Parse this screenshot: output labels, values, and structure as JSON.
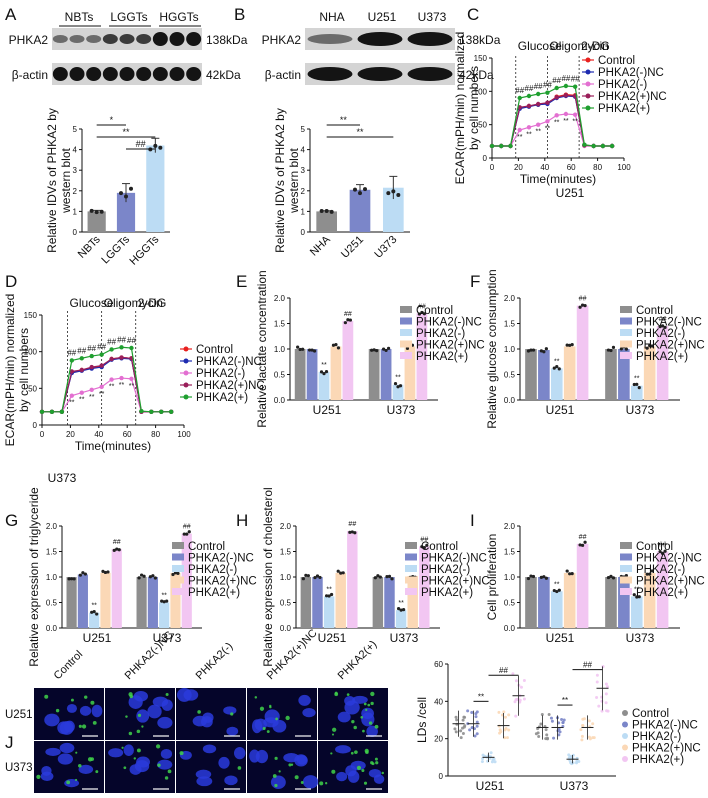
{
  "panel_letters": [
    "A",
    "B",
    "C",
    "D",
    "E",
    "F",
    "G",
    "H",
    "I",
    "J"
  ],
  "colors": {
    "control": "#8e8e8e",
    "neg_nc": "#7b86c9",
    "neg": "#bcdcf4",
    "pos_nc": "#fbd8b6",
    "pos": "#f2c6f2",
    "line_control": "#e8201e",
    "line_neg_nc": "#1d2bb0",
    "line_neg": "#e36fd1",
    "line_pos_nc": "#9a1f5a",
    "line_pos": "#1f9f2f",
    "blot_band": "#141414",
    "blot_bg": "#d4d4d4",
    "micro_bg": "#05052a",
    "nuclei": "#2a3bdc",
    "lipid": "#3fd24a"
  },
  "legend": [
    "Control",
    "PHKA2(-)NC",
    "PHKA2(-)",
    "PHKA2(+)NC",
    "PHKA2(+)"
  ],
  "blotA": {
    "groups": [
      "NBTs",
      "LGGTs",
      "HGGTs"
    ],
    "row1": "PHKA2",
    "row2": "β-actin",
    "kda1": "138kDa",
    "kda2": "42kDa"
  },
  "blotB": {
    "groups": [
      "NHA",
      "U251",
      "U373"
    ],
    "row1": "PHKA2",
    "row2": "β-actin",
    "kda1": "138kDa",
    "kda2": "42kDa"
  },
  "ecar_labels": {
    "glucose": "Glucose",
    "oligomycin": "Oligomycin",
    "dg": "2-DG",
    "ylabel_1": "ECAR(mPH/min) normalized",
    "ylabel_2": "by cell numbers",
    "xlabel": "Time(minutes)"
  },
  "captions": {
    "c": "U251",
    "d": "U373"
  },
  "sig": {
    "ss": "**",
    "hh": "##"
  },
  "microscopy": {
    "cols": [
      "Control",
      "PHKA2(-)NC",
      "PHKA2(-)",
      "PHKA2(+)NC",
      "PHKA2(+)"
    ],
    "rows": [
      "U251",
      "U373"
    ]
  },
  "chart_data": [
    {
      "panel": "A",
      "type": "bar",
      "ylabel": "Relative IDVs of PHKA2 by western blot",
      "categories": [
        "NBTs",
        "LGGTs",
        "HGGTs"
      ],
      "values": [
        1.0,
        1.9,
        4.2
      ],
      "errors": [
        0.05,
        0.45,
        0.35
      ],
      "ylim": [
        0,
        5
      ],
      "yticks": [
        0,
        1,
        2,
        3,
        4,
        5
      ],
      "sig": [
        {
          "from": 0,
          "to": 1,
          "text": "*"
        },
        {
          "from": 0,
          "to": 2,
          "text": "**"
        },
        {
          "from": 1,
          "to": 2,
          "text": "##"
        }
      ]
    },
    {
      "panel": "B",
      "type": "bar",
      "ylabel": "Relative IDVs of PHKA2 by western blot",
      "categories": [
        "NHA",
        "U251",
        "U373"
      ],
      "values": [
        1.0,
        2.05,
        2.15
      ],
      "errors": [
        0.03,
        0.25,
        0.55
      ],
      "ylim": [
        0,
        5
      ],
      "yticks": [
        0,
        1,
        2,
        3,
        4,
        5
      ],
      "sig": [
        {
          "from": 0,
          "to": 1,
          "text": "**"
        },
        {
          "from": 0,
          "to": 2,
          "text": "**"
        }
      ]
    },
    {
      "panel": "C",
      "type": "line",
      "ylabel": "ECAR(mPH/min) normalized by cell numbers",
      "xlabel": "Time(minutes)",
      "xlim": [
        0,
        100
      ],
      "xticks": [
        0,
        20,
        40,
        60,
        80,
        100
      ],
      "ylim": [
        0,
        150
      ],
      "yticks": [
        0,
        50,
        100,
        150
      ],
      "x": [
        0,
        7,
        14,
        21,
        28,
        35,
        42,
        49,
        56,
        63,
        70,
        77,
        84,
        91
      ],
      "series": [
        {
          "name": "Control",
          "values": [
            18,
            18,
            18,
            75,
            78,
            80,
            82,
            92,
            95,
            94,
            19,
            18,
            18,
            18
          ]
        },
        {
          "name": "PHKA2(-)NC",
          "values": [
            18,
            18,
            18,
            74,
            77,
            80,
            81,
            90,
            93,
            92,
            19,
            18,
            18,
            18
          ]
        },
        {
          "name": "PHKA2(-)",
          "values": [
            18,
            18,
            18,
            42,
            46,
            50,
            55,
            64,
            66,
            65,
            18,
            18,
            18,
            18
          ]
        },
        {
          "name": "PHKA2(+)NC",
          "values": [
            18,
            18,
            18,
            76,
            78,
            81,
            83,
            91,
            94,
            93,
            19,
            18,
            18,
            18
          ]
        },
        {
          "name": "PHKA2(+)",
          "values": [
            18,
            18,
            18,
            90,
            93,
            96,
            98,
            105,
            108,
            107,
            20,
            18,
            18,
            18
          ]
        }
      ]
    },
    {
      "panel": "D",
      "type": "line",
      "ylabel": "ECAR(mPH/min) normalized by cell numbers",
      "xlabel": "Time(minutes)",
      "xlim": [
        0,
        100
      ],
      "xticks": [
        0,
        20,
        40,
        60,
        80,
        100
      ],
      "ylim": [
        0,
        150
      ],
      "yticks": [
        0,
        50,
        100,
        150
      ],
      "x": [
        0,
        7,
        14,
        21,
        28,
        35,
        42,
        49,
        56,
        63,
        70,
        77,
        84,
        91
      ],
      "series": [
        {
          "name": "Control",
          "values": [
            18,
            18,
            18,
            72,
            75,
            78,
            80,
            90,
            92,
            91,
            18,
            18,
            18,
            18
          ]
        },
        {
          "name": "PHKA2(-)NC",
          "values": [
            18,
            18,
            18,
            71,
            74,
            77,
            79,
            89,
            91,
            90,
            18,
            18,
            18,
            18
          ]
        },
        {
          "name": "PHKA2(-)",
          "values": [
            18,
            18,
            18,
            40,
            44,
            48,
            52,
            62,
            64,
            63,
            18,
            18,
            18,
            18
          ]
        },
        {
          "name": "PHKA2(+)NC",
          "values": [
            18,
            18,
            18,
            73,
            75,
            79,
            81,
            90,
            92,
            91,
            18,
            18,
            18,
            18
          ]
        },
        {
          "name": "PHKA2(+)",
          "values": [
            18,
            18,
            18,
            88,
            91,
            94,
            96,
            103,
            106,
            105,
            19,
            18,
            18,
            18
          ]
        }
      ]
    },
    {
      "panel": "E",
      "type": "bar",
      "ylabel": "Relative lactate concentration",
      "categories": [
        "U251",
        "U373"
      ],
      "ylim": [
        0,
        2.0
      ],
      "yticks": [
        0,
        0.5,
        1.0,
        1.5,
        2.0
      ],
      "series": [
        {
          "name": "Control",
          "values": [
            1.0,
            1.0
          ]
        },
        {
          "name": "PHKA2(-)NC",
          "values": [
            1.0,
            1.0
          ]
        },
        {
          "name": "PHKA2(-)",
          "values": [
            0.55,
            0.3
          ]
        },
        {
          "name": "PHKA2(+)NC",
          "values": [
            1.05,
            1.05
          ]
        },
        {
          "name": "PHKA2(+)",
          "values": [
            1.55,
            1.7
          ]
        }
      ]
    },
    {
      "panel": "F",
      "type": "bar",
      "ylabel": "Relative glucose consumption",
      "categories": [
        "U251",
        "U373"
      ],
      "ylim": [
        0,
        2.0
      ],
      "yticks": [
        0,
        0.5,
        1.0,
        1.5,
        2.0
      ],
      "series": [
        {
          "name": "Control",
          "values": [
            1.0,
            1.0
          ]
        },
        {
          "name": "PHKA2(-)NC",
          "values": [
            0.98,
            1.0
          ]
        },
        {
          "name": "PHKA2(-)",
          "values": [
            0.62,
            0.28
          ]
        },
        {
          "name": "PHKA2(+)NC",
          "values": [
            1.05,
            1.05
          ]
        },
        {
          "name": "PHKA2(+)",
          "values": [
            1.85,
            1.45
          ]
        }
      ]
    },
    {
      "panel": "G",
      "type": "bar",
      "ylabel": "Relative expression of triglyceride",
      "categories": [
        "U251",
        "U373"
      ],
      "ylim": [
        0,
        2.0
      ],
      "yticks": [
        0,
        0.5,
        1.0,
        1.5,
        2.0
      ],
      "series": [
        {
          "name": "Control",
          "values": [
            1.0,
            1.0
          ]
        },
        {
          "name": "PHKA2(-)NC",
          "values": [
            1.05,
            1.0
          ]
        },
        {
          "name": "PHKA2(-)",
          "values": [
            0.3,
            0.5
          ]
        },
        {
          "name": "PHKA2(+)NC",
          "values": [
            1.08,
            1.08
          ]
        },
        {
          "name": "PHKA2(+)",
          "values": [
            1.55,
            1.85
          ]
        }
      ]
    },
    {
      "panel": "H",
      "type": "bar",
      "ylabel": "Relative expression of cholesterol",
      "categories": [
        "U251",
        "U373"
      ],
      "ylim": [
        0,
        2.0
      ],
      "yticks": [
        0,
        0.5,
        1.0,
        1.5,
        2.0
      ],
      "series": [
        {
          "name": "Control",
          "values": [
            1.0,
            1.0
          ]
        },
        {
          "name": "PHKA2(-)NC",
          "values": [
            1.0,
            1.0
          ]
        },
        {
          "name": "PHKA2(-)",
          "values": [
            0.62,
            0.35
          ]
        },
        {
          "name": "PHKA2(+)NC",
          "values": [
            1.08,
            1.02
          ]
        },
        {
          "name": "PHKA2(+)",
          "values": [
            1.9,
            1.6
          ]
        }
      ]
    },
    {
      "panel": "I",
      "type": "bar",
      "ylabel": "Cell proliferation",
      "categories": [
        "U251",
        "U373"
      ],
      "ylim": [
        0,
        2.0
      ],
      "yticks": [
        0,
        0.5,
        1.0,
        1.5,
        2.0
      ],
      "series": [
        {
          "name": "Control",
          "values": [
            1.0,
            1.0
          ]
        },
        {
          "name": "PHKA2(-)NC",
          "values": [
            1.0,
            1.0
          ]
        },
        {
          "name": "PHKA2(-)",
          "values": [
            0.72,
            0.62
          ]
        },
        {
          "name": "PHKA2(+)NC",
          "values": [
            1.08,
            1.08
          ]
        },
        {
          "name": "PHKA2(+)",
          "values": [
            1.65,
            1.5
          ]
        }
      ]
    },
    {
      "panel": "J",
      "type": "scatter",
      "ylabel": "LDs /cell",
      "categories": [
        "U251",
        "U373"
      ],
      "ylim": [
        0,
        60
      ],
      "yticks": [
        0,
        20,
        40,
        60
      ],
      "series": [
        {
          "name": "Control",
          "values": [
            28,
            26
          ]
        },
        {
          "name": "PHKA2(-)NC",
          "values": [
            28,
            26
          ]
        },
        {
          "name": "PHKA2(-)",
          "values": [
            10,
            9
          ]
        },
        {
          "name": "PHKA2(+)NC",
          "values": [
            27,
            26
          ]
        },
        {
          "name": "PHKA2(+)",
          "values": [
            43,
            47
          ]
        }
      ]
    }
  ]
}
